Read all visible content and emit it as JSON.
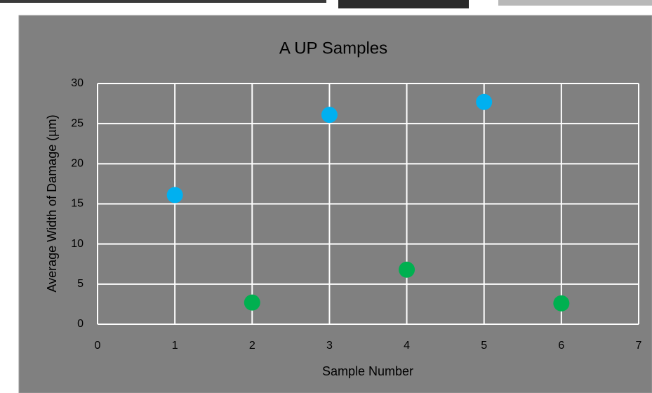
{
  "chart_data": {
    "type": "scatter",
    "title": "A UP Samples",
    "x_label": "Sample Number",
    "y_label": "Average Width of Damage (µm)",
    "series": [
      {
        "color": "#00b0f0",
        "x": [
          1,
          3,
          5
        ],
        "values": [
          16.1,
          26.1,
          27.7
        ]
      },
      {
        "color": "#00b050",
        "x": [
          2,
          4,
          6
        ],
        "values": [
          2.7,
          6.8,
          2.6
        ]
      }
    ],
    "xlim": [
      0,
      7
    ],
    "xticks": [
      0,
      1,
      2,
      3,
      4,
      5,
      6,
      7
    ],
    "ylim": [
      0,
      30
    ],
    "yticks": [
      0,
      5,
      10,
      15,
      20,
      25,
      30
    ],
    "grid": true
  }
}
